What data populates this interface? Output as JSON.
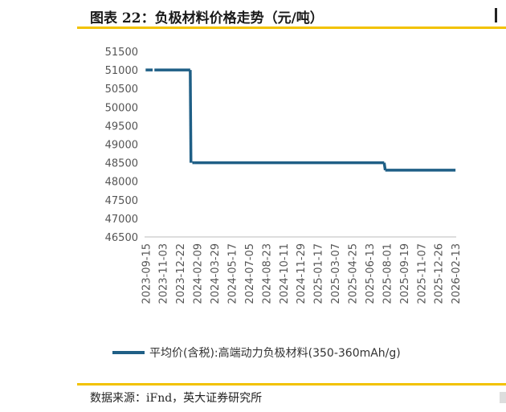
{
  "header": {
    "title": "图表 22：负极材料价格走势（元/吨）"
  },
  "footer": {
    "source": "数据来源：iFnd，英大证券研究所"
  },
  "chart_data": {
    "type": "line",
    "ylim": [
      46500,
      51500
    ],
    "yticks": [
      46500,
      47000,
      47500,
      48000,
      48500,
      49000,
      49500,
      50000,
      50500,
      51000,
      51500
    ],
    "xtick_labels": [
      "2023-09-15",
      "2023-11-03",
      "2023-12-22",
      "2024-02-09",
      "2024-03-29",
      "2024-05-17",
      "2024-07-05",
      "2024-08-23",
      "2024-10-11",
      "2024-11-29",
      "2025-01-17",
      "2025-03-07",
      "2025-04-25",
      "2025-06-13",
      "2025-08-01",
      "2025-09-19",
      "2025-11-07",
      "2025-12-26",
      "2026-02-13"
    ],
    "grid": false,
    "legend_position": "bottom",
    "color": "#1f5f86",
    "series": [
      {
        "name": "平均价(含税):高端动力负极材料(350-360mAh/g)",
        "points": [
          {
            "x": "2023-09-15",
            "y": 51000
          },
          {
            "x": "2023-10-05",
            "y": 51000
          },
          {
            "x": "2023-10-10",
            "y": 51000
          },
          {
            "x": "2024-01-20",
            "y": 51000
          },
          {
            "x": "2024-01-22",
            "y": 48500
          },
          {
            "x": "2024-01-26",
            "y": 48500
          },
          {
            "x": "2024-02-02",
            "y": 48500
          },
          {
            "x": "2025-07-25",
            "y": 48500
          },
          {
            "x": "2025-07-28",
            "y": 48300
          },
          {
            "x": "2026-02-13",
            "y": 48300
          }
        ]
      }
    ]
  }
}
